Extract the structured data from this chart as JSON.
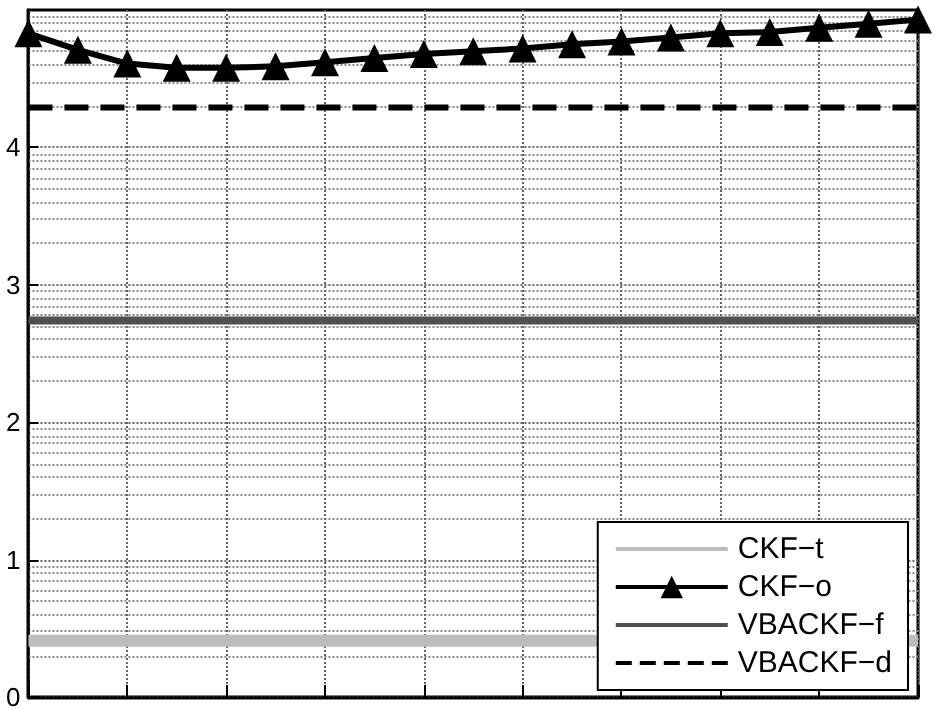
{
  "chart_data": {
    "type": "line",
    "categories": [
      null,
      null,
      null,
      null,
      null,
      null,
      null,
      null,
      null,
      null,
      null,
      null,
      null,
      null,
      null,
      null,
      null,
      null,
      null
    ],
    "ylim": [
      0,
      5
    ],
    "yticks": [
      0,
      1,
      2,
      3,
      4
    ],
    "tick_labels": "y",
    "grid": true,
    "legend": "bottom right",
    "series": [
      {
        "name": "CKF−t",
        "color": "#bdbdbd",
        "marker": "none",
        "line_style": "solid",
        "values": [
          0.41,
          0.41,
          0.41,
          0.41,
          0.41,
          0.41,
          0.41,
          0.41,
          0.41,
          0.41,
          0.41,
          0.41,
          null,
          null,
          null,
          null,
          null,
          null,
          0.41
        ]
      },
      {
        "name": "CKF−o",
        "color": "#000000",
        "marker": "triangle",
        "line_style": "solid",
        "values": [
          4.83,
          4.71,
          4.61,
          4.58,
          4.58,
          4.59,
          4.62,
          4.65,
          4.68,
          4.7,
          4.72,
          4.75,
          4.77,
          4.8,
          4.83,
          4.84,
          4.87,
          4.9,
          4.93
        ]
      },
      {
        "name": "VBACKF−f",
        "color": "#505050",
        "marker": "none",
        "line_style": "solid",
        "values": [
          2.74,
          2.74,
          2.74,
          2.74,
          2.74,
          2.74,
          2.74,
          2.74,
          2.74,
          2.74,
          2.74,
          2.74,
          2.74,
          2.74,
          2.74,
          2.74,
          2.74,
          2.74,
          2.74
        ]
      },
      {
        "name": "VBACKF−d",
        "color": "#000000",
        "marker": "none",
        "line_style": "dashed",
        "values": [
          4.29,
          4.29,
          4.29,
          4.29,
          4.29,
          4.29,
          4.29,
          4.29,
          4.29,
          4.29,
          4.29,
          4.29,
          4.29,
          4.29,
          4.29,
          4.29,
          4.29,
          4.29,
          4.29
        ]
      }
    ]
  }
}
